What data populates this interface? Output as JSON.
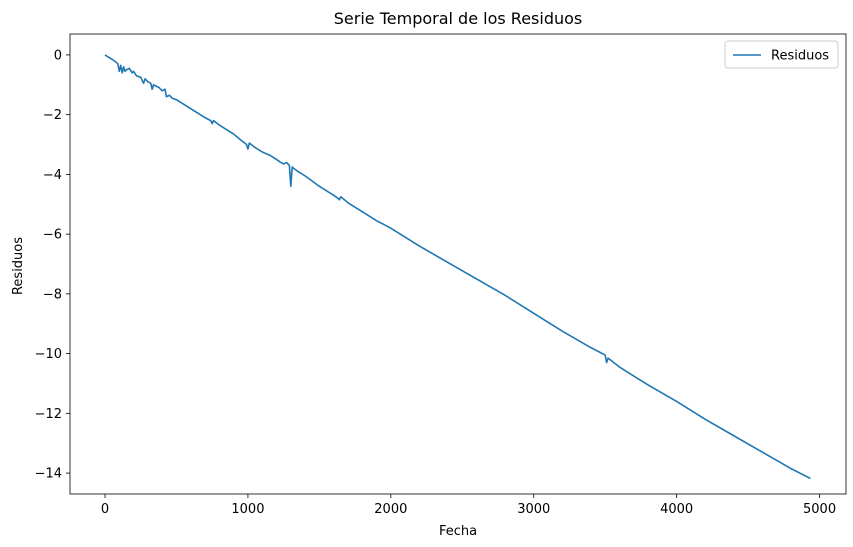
{
  "chart_data": {
    "type": "line",
    "title": "Serie Temporal de los Residuos",
    "xlabel": "Fecha",
    "ylabel": "Residuos",
    "xlim": [
      -245,
      5185
    ],
    "ylim": [
      -14.7,
      0.7
    ],
    "xticks": [
      0,
      1000,
      2000,
      3000,
      4000,
      5000
    ],
    "xtick_labels": [
      "0",
      "1000",
      "2000",
      "3000",
      "4000",
      "5000"
    ],
    "yticks": [
      0,
      -2,
      -4,
      -6,
      -8,
      -10,
      -12,
      -14
    ],
    "ytick_labels": [
      "0",
      "−2",
      "−4",
      "−6",
      "−8",
      "−10",
      "−12",
      "−14"
    ],
    "grid": false,
    "legend_position": "top-right",
    "series": [
      {
        "name": "Residuos",
        "color": "#1f77b4",
        "x": [
          0,
          50,
          80,
          90,
          100,
          110,
          120,
          130,
          140,
          150,
          170,
          190,
          200,
          220,
          250,
          270,
          280,
          300,
          320,
          330,
          340,
          360,
          380,
          400,
          420,
          430,
          450,
          470,
          500,
          550,
          600,
          650,
          700,
          740,
          750,
          760,
          800,
          850,
          900,
          950,
          990,
          1000,
          1010,
          1050,
          1100,
          1150,
          1200,
          1230,
          1250,
          1270,
          1290,
          1300,
          1310,
          1320,
          1350,
          1400,
          1500,
          1600,
          1630,
          1640,
          1650,
          1700,
          1800,
          1900,
          2000,
          2200,
          2400,
          2600,
          2800,
          3000,
          3200,
          3400,
          3500,
          3510,
          3520,
          3600,
          3800,
          4000,
          4200,
          4400,
          4600,
          4800,
          4936
        ],
        "y": [
          0.0,
          -0.15,
          -0.25,
          -0.3,
          -0.55,
          -0.35,
          -0.6,
          -0.4,
          -0.55,
          -0.5,
          -0.45,
          -0.6,
          -0.55,
          -0.7,
          -0.75,
          -0.95,
          -0.8,
          -0.9,
          -0.95,
          -1.15,
          -1.0,
          -1.05,
          -1.1,
          -1.2,
          -1.15,
          -1.4,
          -1.35,
          -1.45,
          -1.5,
          -1.65,
          -1.8,
          -1.95,
          -2.1,
          -2.2,
          -2.3,
          -2.2,
          -2.35,
          -2.5,
          -2.65,
          -2.85,
          -3.0,
          -3.15,
          -2.95,
          -3.1,
          -3.25,
          -3.35,
          -3.5,
          -3.6,
          -3.65,
          -3.6,
          -3.7,
          -4.4,
          -3.75,
          -3.8,
          -3.9,
          -4.05,
          -4.4,
          -4.7,
          -4.8,
          -4.85,
          -4.75,
          -4.95,
          -5.25,
          -5.55,
          -5.8,
          -6.4,
          -6.95,
          -7.5,
          -8.05,
          -8.65,
          -9.25,
          -9.8,
          -10.05,
          -10.3,
          -10.15,
          -10.45,
          -11.05,
          -11.6,
          -12.2,
          -12.75,
          -13.3,
          -13.85,
          -14.18
        ]
      }
    ]
  }
}
